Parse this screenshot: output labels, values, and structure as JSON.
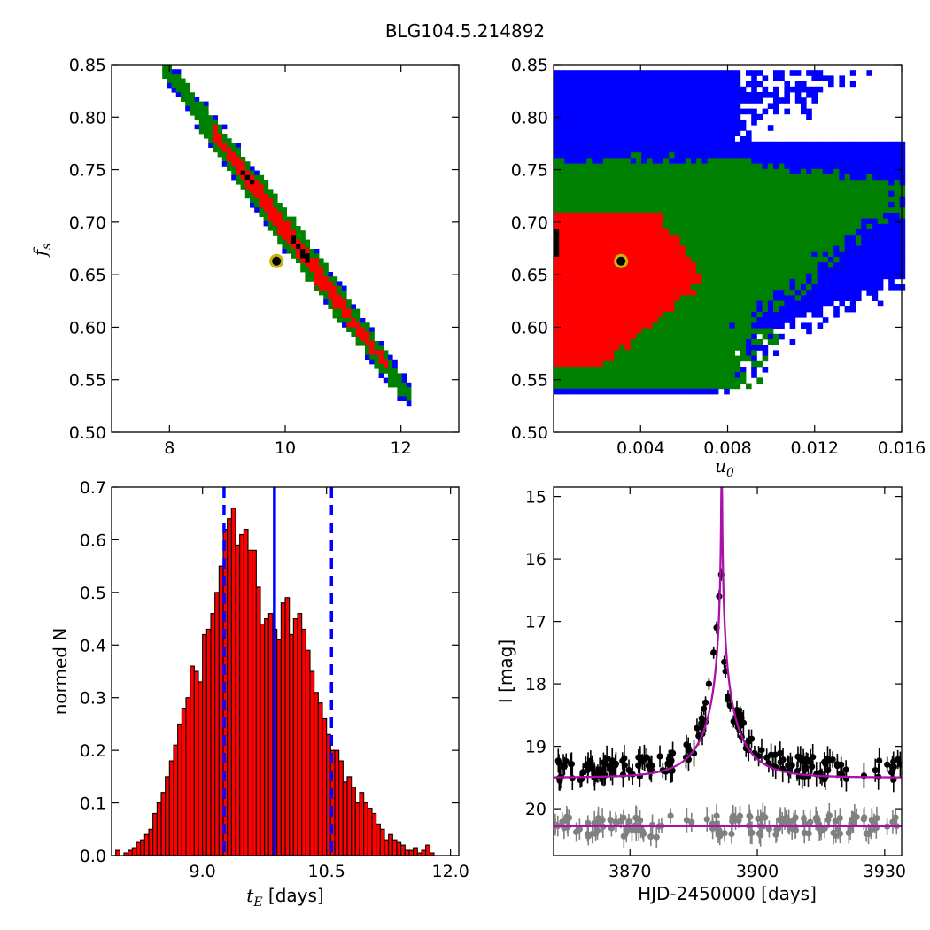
{
  "figure": {
    "title": "BLG104.5.214892"
  },
  "colors": {
    "blue": "#0000ff",
    "green": "#008000",
    "red": "#ff0000",
    "black": "#000000",
    "gray": "#808080",
    "magenta": "#aa10aa",
    "marker_yellow": "#c8b400"
  },
  "chart_data": [
    {
      "id": "fs-vs-tE",
      "type": "heatmap",
      "xlabel": "",
      "ylabel": "f_s",
      "ylabel_main": "f",
      "ylabel_sub": "s",
      "xlim": [
        7,
        13
      ],
      "ylim": [
        0.5,
        0.85
      ],
      "xticks": [
        8,
        10,
        12
      ],
      "xtick_labels": [
        "8",
        "10",
        "12"
      ],
      "yticks": [
        0.5,
        0.55,
        0.6,
        0.65,
        0.7,
        0.75,
        0.8,
        0.85
      ],
      "ytick_labels": [
        "0.50",
        "0.55",
        "0.60",
        "0.65",
        "0.70",
        "0.75",
        "0.80",
        "0.85"
      ],
      "confidence_levels": [
        "blue",
        "green",
        "red",
        "black"
      ],
      "ridge": {
        "t_start": 7.95,
        "fs_start": 0.845,
        "t_end": 12.05,
        "fs_end": 0.54
      },
      "best_fit": {
        "x": 9.85,
        "y": 0.663
      }
    },
    {
      "id": "fs-vs-u0",
      "type": "heatmap",
      "xlabel": "u_0",
      "ylabel": "",
      "xlabel_main": "u",
      "xlabel_sub": "0",
      "xlim": [
        0,
        0.016
      ],
      "ylim": [
        0.5,
        0.85
      ],
      "xticks": [
        0.004,
        0.008,
        0.012,
        0.016
      ],
      "xtick_labels": [
        "0.004",
        "0.008",
        "0.012",
        "0.016"
      ],
      "yticks": [
        0.5,
        0.55,
        0.6,
        0.65,
        0.7,
        0.75,
        0.8,
        0.85
      ],
      "ytick_labels": [
        "0.50",
        "0.55",
        "0.60",
        "0.65",
        "0.70",
        "0.75",
        "0.80",
        "0.85"
      ],
      "confidence_levels": [
        "blue",
        "green",
        "red",
        "black"
      ],
      "best_fit": {
        "x": 0.0031,
        "y": 0.663
      }
    },
    {
      "id": "tE-histogram",
      "type": "bar",
      "xlabel": "t_E [days]",
      "xlabel_main": "t",
      "xlabel_sub": "E",
      "xlabel_rest": " [days]",
      "ylabel": "normed N",
      "xlim": [
        7.9,
        12.1
      ],
      "ylim": [
        0.0,
        0.7
      ],
      "xticks": [
        9.0,
        10.5,
        12.0
      ],
      "xtick_labels": [
        "9.0",
        "10.5",
        "12.0"
      ],
      "yticks": [
        0.0,
        0.1,
        0.2,
        0.3,
        0.4,
        0.5,
        0.6,
        0.7
      ],
      "ytick_labels": [
        "0.0",
        "0.1",
        "0.2",
        "0.3",
        "0.4",
        "0.5",
        "0.6",
        "0.7"
      ],
      "bin_start": 7.95,
      "bin_width": 0.05,
      "values": [
        0.01,
        0.0,
        0.005,
        0.01,
        0.015,
        0.025,
        0.03,
        0.04,
        0.05,
        0.08,
        0.1,
        0.12,
        0.15,
        0.18,
        0.21,
        0.25,
        0.28,
        0.3,
        0.36,
        0.35,
        0.33,
        0.42,
        0.43,
        0.46,
        0.5,
        0.55,
        0.62,
        0.64,
        0.66,
        0.59,
        0.61,
        0.62,
        0.58,
        0.58,
        0.51,
        0.44,
        0.45,
        0.46,
        0.43,
        0.41,
        0.48,
        0.49,
        0.42,
        0.45,
        0.46,
        0.43,
        0.39,
        0.35,
        0.31,
        0.29,
        0.26,
        0.23,
        0.2,
        0.2,
        0.18,
        0.14,
        0.15,
        0.13,
        0.1,
        0.12,
        0.1,
        0.09,
        0.08,
        0.06,
        0.05,
        0.03,
        0.04,
        0.03,
        0.025,
        0.02,
        0.01,
        0.01,
        0.015,
        0.005,
        0.01,
        0.02,
        0.005,
        0.0,
        0.0,
        0.0,
        0.0,
        0.0
      ],
      "vlines": [
        {
          "x": 9.26,
          "style": "dashed"
        },
        {
          "x": 9.87,
          "style": "solid"
        },
        {
          "x": 10.56,
          "style": "dashed"
        }
      ]
    },
    {
      "id": "light-curve",
      "type": "scatter",
      "xlabel": "HJD-2450000 [days]",
      "ylabel": "I [mag]",
      "xlim": [
        3852,
        3934
      ],
      "ylim": [
        20.75,
        14.85
      ],
      "xticks": [
        3870,
        3900,
        3930
      ],
      "xtick_labels": [
        "3870",
        "3900",
        "3930"
      ],
      "yticks": [
        15,
        16,
        17,
        18,
        19,
        20
      ],
      "ytick_labels": [
        "15",
        "16",
        "17",
        "18",
        "19",
        "20"
      ],
      "model": {
        "t0": 3891.6,
        "tE": 9.87,
        "u0": 0.0031,
        "fs": 0.663,
        "I_base": 19.5
      },
      "baseline": 20.28,
      "peak_points": [
        {
          "x": 3886.9,
          "y": 18.55
        },
        {
          "x": 3887.4,
          "y": 18.4
        },
        {
          "x": 3887.8,
          "y": 18.3
        },
        {
          "x": 3888.6,
          "y": 18.0
        },
        {
          "x": 3889.7,
          "y": 17.5
        },
        {
          "x": 3890.4,
          "y": 17.1
        },
        {
          "x": 3891.0,
          "y": 16.6
        },
        {
          "x": 3891.5,
          "y": 16.25
        },
        {
          "x": 3892.2,
          "y": 17.65
        },
        {
          "x": 3892.5,
          "y": 17.8
        },
        {
          "x": 3893.1,
          "y": 18.2
        },
        {
          "x": 3893.6,
          "y": 18.35
        },
        {
          "x": 3894.4,
          "y": 18.6
        },
        {
          "x": 3895.0,
          "y": 18.55
        },
        {
          "x": 3896.3,
          "y": 18.85
        },
        {
          "x": 3893.0,
          "y": 18.25
        }
      ]
    }
  ]
}
